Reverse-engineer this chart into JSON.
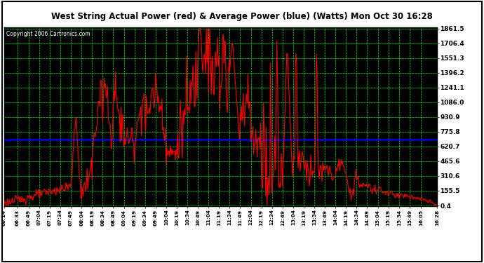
{
  "title": "West String Actual Power (red) & Average Power (blue) (Watts) Mon Oct 30 16:28",
  "copyright": "Copyright 2006 Cartronics.com",
  "yticks": [
    0.4,
    155.5,
    310.6,
    465.6,
    620.7,
    775.8,
    930.9,
    1086.0,
    1241.1,
    1396.2,
    1551.3,
    1706.4,
    1861.5
  ],
  "ymin": 0.4,
  "ymax": 1861.5,
  "avg_power": 693.0,
  "avg_color": "#0000cc",
  "line_color": "#ff0000",
  "bg_color": "#000000",
  "outer_bg": "#ffffff",
  "grid_color": "#00ff00",
  "title_color": "#000000",
  "xtick_labels": [
    "06:14",
    "06:33",
    "06:49",
    "07:04",
    "07:19",
    "07:34",
    "07:49",
    "08:04",
    "08:19",
    "08:34",
    "08:49",
    "09:04",
    "09:19",
    "09:34",
    "09:49",
    "10:04",
    "10:19",
    "10:34",
    "10:49",
    "11:04",
    "11:19",
    "11:34",
    "11:49",
    "12:04",
    "12:19",
    "12:34",
    "12:49",
    "13:04",
    "13:19",
    "13:34",
    "13:49",
    "14:04",
    "14:19",
    "14:34",
    "14:49",
    "15:04",
    "15:19",
    "15:34",
    "15:49",
    "16:05",
    "16:28"
  ]
}
